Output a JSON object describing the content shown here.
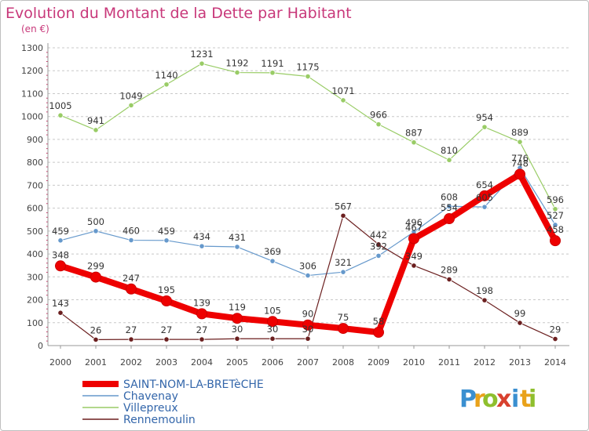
{
  "title": "Evolution du Montant de la Dette par Habitant",
  "subtitle": "(en €)",
  "brand": {
    "letters": [
      "P",
      "r",
      "o",
      "x",
      "i",
      "t",
      "i"
    ],
    "colors": [
      "#3a8fd0",
      "#e9a21b",
      "#8fbf2e",
      "#d8412f",
      "#3a8fd0",
      "#e9a21b",
      "#8fbf2e"
    ]
  },
  "chart_data": {
    "type": "line",
    "title": "Evolution du Montant de la Dette par Habitant",
    "ylabel": "(en €)",
    "ylim": [
      0,
      1300
    ],
    "yticks": [
      0,
      100,
      200,
      300,
      400,
      500,
      600,
      700,
      800,
      900,
      1000,
      1100,
      1200,
      1300
    ],
    "x": [
      "2000",
      "2001",
      "2002",
      "2003",
      "2004",
      "2005",
      "2006",
      "2007",
      "2008",
      "2009",
      "2010",
      "2011",
      "2012",
      "2013",
      "2014"
    ],
    "grid": "y-dashed",
    "legend_position": "bottom-left",
    "series": [
      {
        "name": "Villepreux",
        "color": "#99cc66",
        "values": [
          1005,
          941,
          1049,
          1140,
          1231,
          1192,
          1191,
          1175,
          1071,
          966,
          887,
          810,
          954,
          889,
          596
        ]
      },
      {
        "name": "Chavenay",
        "color": "#6699cc",
        "values": [
          459,
          500,
          460,
          459,
          434,
          431,
          369,
          306,
          321,
          392,
          496,
          608,
          605,
          776,
          527
        ]
      },
      {
        "name": "Rennemoulin",
        "color": "#6b1f1f",
        "values": [
          143,
          26,
          27,
          27,
          27,
          30,
          30,
          30,
          567,
          442,
          349,
          289,
          198,
          99,
          29
        ]
      },
      {
        "name": "SAINT-NOM-LA-BRETèCHE",
        "color": "#ee0000",
        "values": [
          348,
          299,
          247,
          195,
          139,
          119,
          105,
          90,
          75,
          58,
          467,
          554,
          654,
          748,
          458
        ]
      }
    ],
    "legend": [
      "SAINT-NOM-LA-BRETèCHE",
      "Chavenay",
      "Villepreux",
      "Rennemoulin"
    ]
  }
}
